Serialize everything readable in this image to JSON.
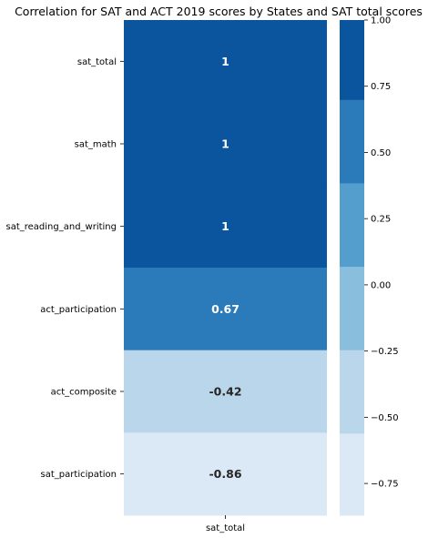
{
  "chart_data": {
    "type": "heatmap",
    "title": "Correlation for SAT and ACT 2019 scores by States and SAT total scores",
    "rows": [
      "sat_total",
      "sat_math",
      "sat_reading_and_writing",
      "act_participation",
      "act_composite",
      "sat_participation"
    ],
    "columns": [
      "sat_total"
    ],
    "values": [
      1.0,
      0.99,
      0.99,
      0.67,
      -0.42,
      -0.86
    ],
    "annotations": [
      "1",
      "1",
      "1",
      "0.67",
      "-0.42",
      "-0.86"
    ],
    "colorbar": {
      "range": [
        -0.87,
        1.0
      ],
      "ticks": [
        1.0,
        0.75,
        0.5,
        0.25,
        0.0,
        -0.25,
        -0.5,
        -0.75
      ],
      "tick_labels": [
        "1.00",
        "0.75",
        "0.50",
        "0.25",
        "0.00",
        "−0.25",
        "−0.50",
        "−0.75"
      ],
      "bins": [
        {
          "from": -0.87,
          "to": -0.56,
          "color": "#dbe9f6"
        },
        {
          "from": -0.56,
          "to": -0.245,
          "color": "#bad6eb"
        },
        {
          "from": -0.245,
          "to": 0.07,
          "color": "#89bedc"
        },
        {
          "from": 0.07,
          "to": 0.385,
          "color": "#539ecd"
        },
        {
          "from": 0.385,
          "to": 0.7,
          "color": "#2b7bba"
        },
        {
          "from": 0.7,
          "to": 1.0,
          "color": "#0b559f"
        }
      ]
    },
    "text_colors": {
      "light": "#ffffff",
      "dark": "#262626"
    }
  }
}
